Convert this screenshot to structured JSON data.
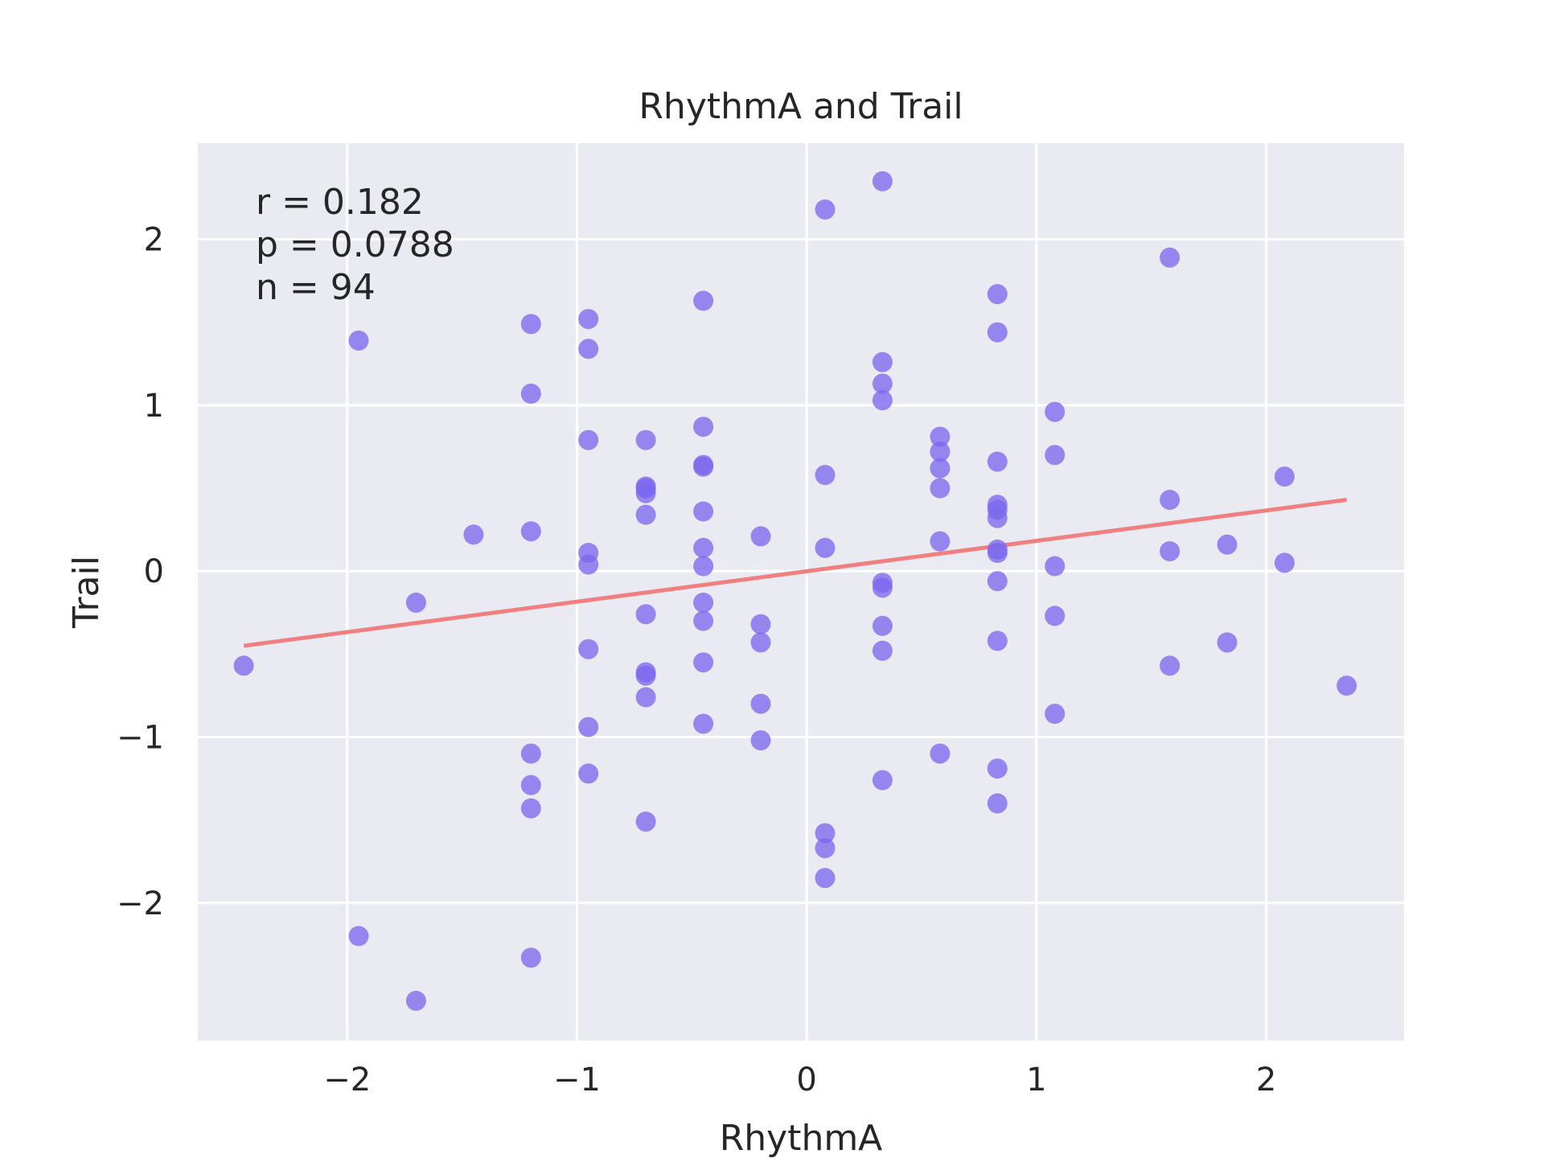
{
  "chart_data": {
    "type": "scatter",
    "title": "RhythmA and Trail",
    "xlabel": "RhythmA",
    "ylabel": "Trail",
    "xlim": [
      -2.65,
      2.6
    ],
    "ylim": [
      -2.83,
      2.58
    ],
    "xticks": [
      -2,
      -1,
      0,
      1,
      2
    ],
    "yticks": [
      -2,
      -1,
      0,
      1,
      2
    ],
    "xtick_labels": [
      "−2",
      "−1",
      "0",
      "1",
      "2"
    ],
    "ytick_labels": [
      "−2",
      "−1",
      "0",
      "1",
      "2"
    ],
    "grid": true,
    "annotations": [
      "r = 0.182",
      "p = 0.0788",
      "n = 94"
    ],
    "colors": {
      "background": "#eaeaf2",
      "grid": "#ffffff",
      "points": "#7b68ee",
      "fit_line": "#f08080"
    },
    "fit_line": {
      "x": [
        -2.45,
        2.35
      ],
      "y": [
        -0.45,
        0.43
      ]
    },
    "points": [
      [
        -2.45,
        -0.57
      ],
      [
        -1.95,
        1.39
      ],
      [
        -1.95,
        -2.2
      ],
      [
        -1.7,
        -0.19
      ],
      [
        -1.7,
        -2.59
      ],
      [
        -1.45,
        0.22
      ],
      [
        -1.2,
        1.49
      ],
      [
        -1.2,
        1.07
      ],
      [
        -1.2,
        0.24
      ],
      [
        -1.2,
        -1.1
      ],
      [
        -1.2,
        -1.29
      ],
      [
        -1.2,
        -1.43
      ],
      [
        -1.2,
        -2.33
      ],
      [
        -0.95,
        1.52
      ],
      [
        -0.95,
        1.34
      ],
      [
        -0.95,
        0.79
      ],
      [
        -0.95,
        0.11
      ],
      [
        -0.95,
        0.04
      ],
      [
        -0.95,
        -0.47
      ],
      [
        -0.95,
        -0.94
      ],
      [
        -0.95,
        -1.22
      ],
      [
        -0.7,
        0.79
      ],
      [
        -0.7,
        0.51
      ],
      [
        -0.7,
        0.5
      ],
      [
        -0.7,
        0.47
      ],
      [
        -0.7,
        0.34
      ],
      [
        -0.7,
        -0.26
      ],
      [
        -0.7,
        -0.61
      ],
      [
        -0.7,
        -0.63
      ],
      [
        -0.7,
        -0.76
      ],
      [
        -0.7,
        -1.51
      ],
      [
        -0.45,
        1.63
      ],
      [
        -0.45,
        0.87
      ],
      [
        -0.45,
        0.64
      ],
      [
        -0.45,
        0.63
      ],
      [
        -0.45,
        0.36
      ],
      [
        -0.45,
        0.14
      ],
      [
        -0.45,
        0.03
      ],
      [
        -0.45,
        -0.19
      ],
      [
        -0.45,
        -0.3
      ],
      [
        -0.45,
        -0.55
      ],
      [
        -0.45,
        -0.92
      ],
      [
        -0.2,
        0.21
      ],
      [
        -0.2,
        -0.32
      ],
      [
        -0.2,
        -0.43
      ],
      [
        -0.2,
        -0.8
      ],
      [
        -0.2,
        -1.02
      ],
      [
        0.08,
        2.18
      ],
      [
        0.08,
        0.58
      ],
      [
        0.08,
        0.14
      ],
      [
        0.08,
        -1.58
      ],
      [
        0.08,
        -1.67
      ],
      [
        0.08,
        -1.85
      ],
      [
        0.33,
        2.35
      ],
      [
        0.33,
        1.26
      ],
      [
        0.33,
        1.13
      ],
      [
        0.33,
        1.03
      ],
      [
        0.33,
        -0.07
      ],
      [
        0.33,
        -0.1
      ],
      [
        0.33,
        -0.33
      ],
      [
        0.33,
        -0.48
      ],
      [
        0.33,
        -1.26
      ],
      [
        0.58,
        0.81
      ],
      [
        0.58,
        0.72
      ],
      [
        0.58,
        0.62
      ],
      [
        0.58,
        0.5
      ],
      [
        0.58,
        0.18
      ],
      [
        0.58,
        -1.1
      ],
      [
        0.83,
        1.67
      ],
      [
        0.83,
        1.44
      ],
      [
        0.83,
        0.66
      ],
      [
        0.83,
        0.4
      ],
      [
        0.83,
        0.37
      ],
      [
        0.83,
        0.32
      ],
      [
        0.83,
        0.13
      ],
      [
        0.83,
        0.11
      ],
      [
        0.83,
        -0.06
      ],
      [
        0.83,
        -0.42
      ],
      [
        0.83,
        -1.19
      ],
      [
        0.83,
        -1.4
      ],
      [
        1.08,
        0.96
      ],
      [
        1.08,
        0.7
      ],
      [
        1.08,
        0.03
      ],
      [
        1.08,
        -0.27
      ],
      [
        1.08,
        -0.86
      ],
      [
        1.58,
        1.89
      ],
      [
        1.58,
        0.43
      ],
      [
        1.58,
        0.12
      ],
      [
        1.58,
        -0.57
      ],
      [
        1.83,
        0.16
      ],
      [
        1.83,
        -0.43
      ],
      [
        2.08,
        0.57
      ],
      [
        2.08,
        0.05
      ],
      [
        2.35,
        -0.69
      ]
    ]
  }
}
